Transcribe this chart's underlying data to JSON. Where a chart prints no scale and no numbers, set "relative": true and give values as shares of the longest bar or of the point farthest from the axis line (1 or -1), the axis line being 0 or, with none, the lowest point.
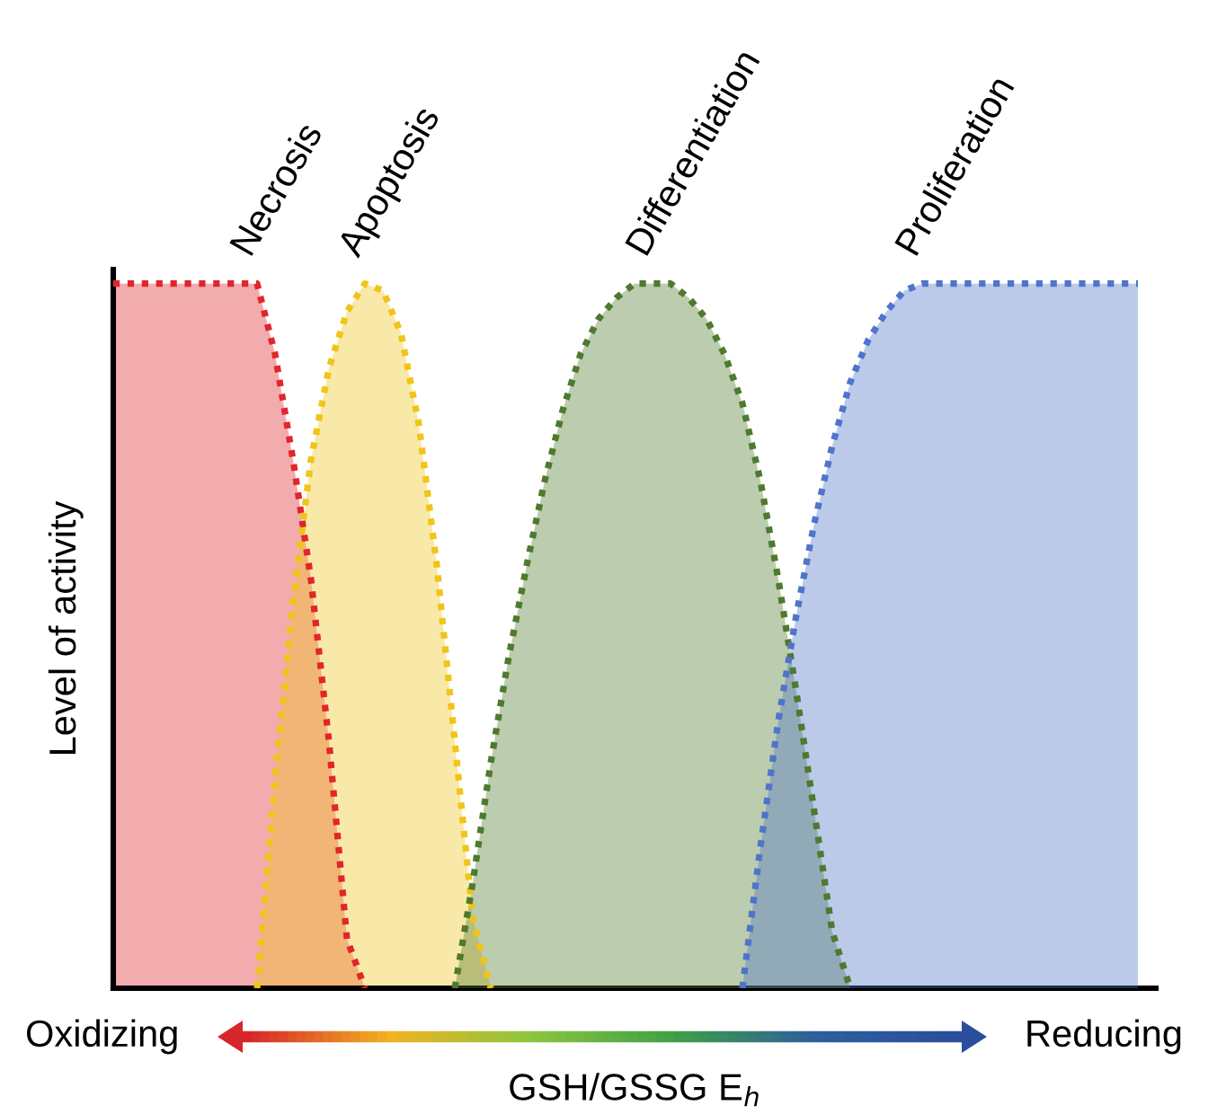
{
  "chart_data": {
    "type": "area",
    "relative": true,
    "ylabel": "Level of activity",
    "xlabel": "GSH/GSSG E$_{h}$",
    "annotations": [
      "Oxidizing",
      "Reducing"
    ],
    "line_style": "dotted",
    "categories": [
      null,
      null,
      null,
      null,
      null,
      null,
      null,
      null,
      null,
      null,
      null,
      null,
      null,
      null,
      null,
      null,
      null,
      null,
      null,
      null,
      null,
      null,
      null,
      null,
      null,
      null,
      null,
      null,
      null,
      null,
      null,
      null,
      null,
      null,
      null,
      null,
      null,
      null,
      null,
      null,
      null,
      null,
      null,
      null,
      null,
      null,
      null,
      null,
      null,
      null,
      null,
      null,
      null,
      null,
      null,
      null,
      null,
      null
    ],
    "series": [
      {
        "name": "Necrosis",
        "color": "#e0262b",
        "values": [
          1,
          1,
          1,
          1,
          1,
          1,
          1,
          1,
          1,
          0.9,
          0.75,
          0.58,
          0.35,
          0.07,
          0,
          null,
          null,
          null,
          null,
          null,
          null,
          null,
          null,
          null,
          null,
          null,
          null,
          null,
          null,
          null,
          null,
          null,
          null,
          null,
          null,
          null,
          null,
          null,
          null,
          null,
          null,
          null,
          null,
          null,
          null,
          null,
          null,
          null,
          null,
          null,
          null,
          null,
          null,
          null,
          null,
          null,
          null,
          null
        ]
      },
      {
        "name": "Apoptosis",
        "color": "#f0c419",
        "values": [
          null,
          null,
          null,
          null,
          null,
          null,
          null,
          null,
          0,
          0.3,
          0.55,
          0.75,
          0.88,
          0.96,
          1,
          0.99,
          0.93,
          0.8,
          0.6,
          0.35,
          0.1,
          0,
          null,
          null,
          null,
          null,
          null,
          null,
          null,
          null,
          null,
          null,
          null,
          null,
          null,
          null,
          null,
          null,
          null,
          null,
          null,
          null,
          null,
          null,
          null,
          null,
          null,
          null,
          null,
          null,
          null,
          null,
          null,
          null,
          null,
          null,
          null,
          null
        ]
      },
      {
        "name": "Differentiation",
        "color": "#4e7a2e",
        "values": [
          null,
          null,
          null,
          null,
          null,
          null,
          null,
          null,
          null,
          null,
          null,
          null,
          null,
          null,
          null,
          null,
          null,
          null,
          null,
          0,
          0.15,
          0.32,
          0.47,
          0.6,
          0.72,
          0.82,
          0.9,
          0.95,
          0.98,
          1,
          1,
          1,
          0.98,
          0.95,
          0.9,
          0.83,
          0.72,
          0.58,
          0.42,
          0.25,
          0.08,
          0,
          null,
          null,
          null,
          null,
          null,
          null,
          null,
          null,
          null,
          null,
          null,
          null,
          null,
          null,
          null,
          null
        ]
      },
      {
        "name": "Proliferation",
        "color": "#4f74c9",
        "values": [
          null,
          null,
          null,
          null,
          null,
          null,
          null,
          null,
          null,
          null,
          null,
          null,
          null,
          null,
          null,
          null,
          null,
          null,
          null,
          null,
          null,
          null,
          null,
          null,
          null,
          null,
          null,
          null,
          null,
          null,
          null,
          null,
          null,
          null,
          null,
          0,
          0.2,
          0.38,
          0.53,
          0.66,
          0.77,
          0.86,
          0.92,
          0.96,
          0.99,
          1,
          1,
          1,
          1,
          1,
          1,
          1,
          1,
          1,
          1,
          1,
          1,
          1
        ]
      }
    ]
  }
}
